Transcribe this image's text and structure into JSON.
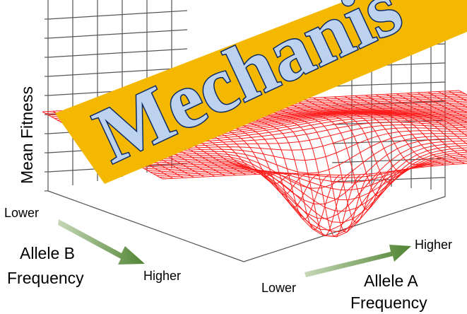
{
  "axes": {
    "z_label": "Mean Fitness",
    "b_label_line1": "Allele B",
    "b_label_line2": "Frequency",
    "a_label_line1": "Allele A",
    "a_label_line2": "Frequency"
  },
  "ticks": {
    "b_lower": "Lower",
    "b_higher": "Higher",
    "a_lower": "Lower",
    "a_higher": "Higher"
  },
  "banner": {
    "text": "Mechanis"
  },
  "colors": {
    "surface": "#ff1a1a",
    "banner_fill": "#f5b800",
    "banner_text": "#bcd2ee",
    "banner_outline": "#0a2a66",
    "arrow": "#5a8a3a",
    "grid": "#666666"
  }
}
